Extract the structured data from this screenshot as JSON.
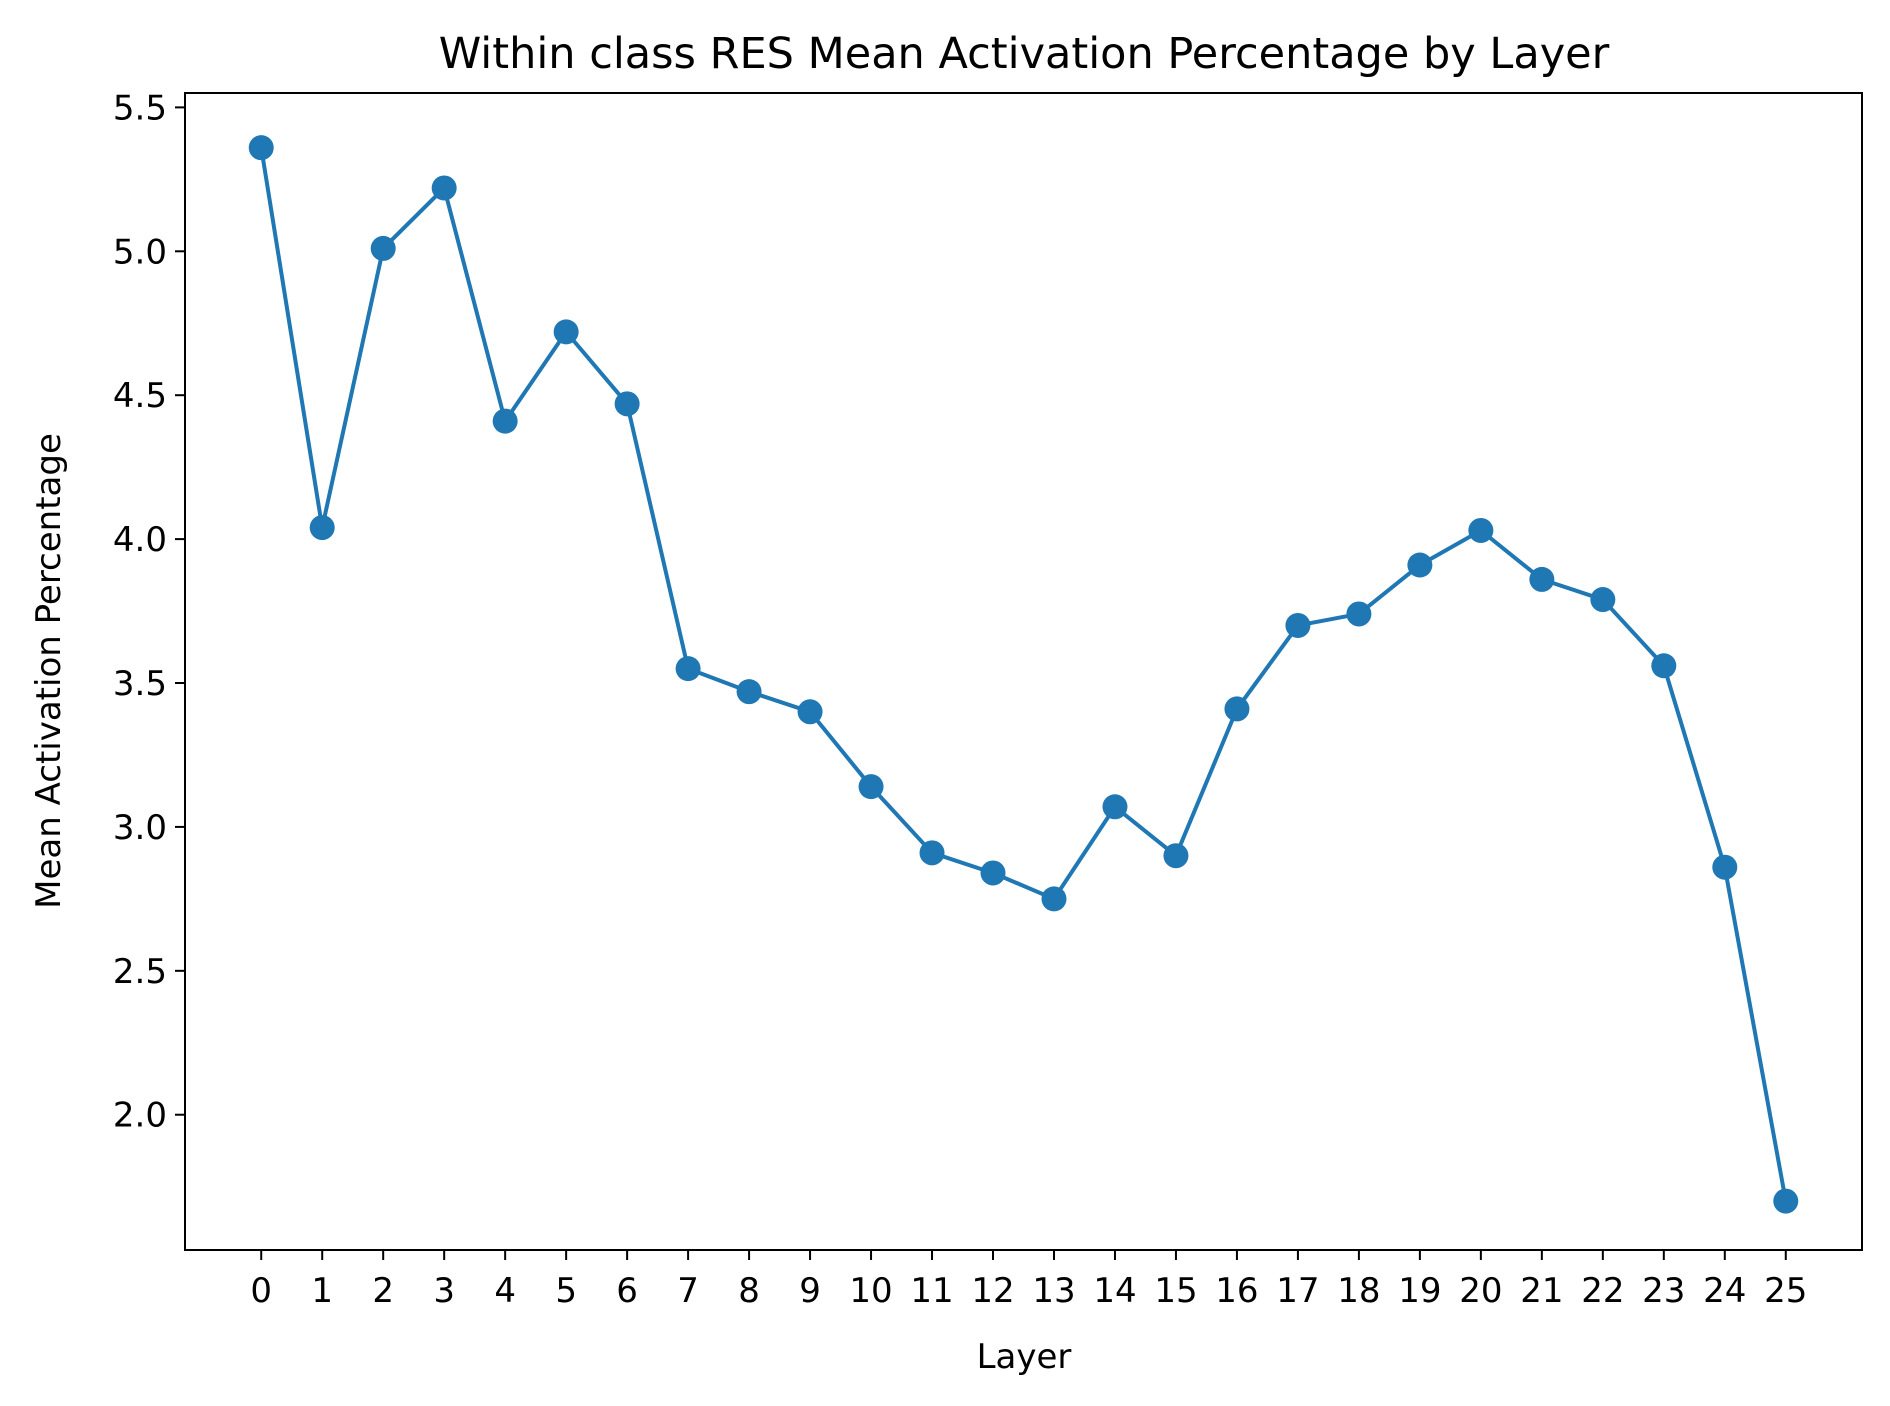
{
  "chart_data": {
    "type": "line",
    "title": "Within class RES Mean Activation Percentage by Layer",
    "xlabel": "Layer",
    "ylabel": "Mean Activation Percentage",
    "x_ticks": [
      "0",
      "1",
      "2",
      "3",
      "4",
      "5",
      "6",
      "7",
      "8",
      "9",
      "10",
      "11",
      "12",
      "13",
      "14",
      "15",
      "16",
      "17",
      "18",
      "19",
      "20",
      "21",
      "22",
      "23",
      "24",
      "25"
    ],
    "y_ticks": [
      "2.0",
      "2.5",
      "3.0",
      "3.5",
      "4.0",
      "4.5",
      "5.0",
      "5.5"
    ],
    "xlim": [
      -1.25,
      26.25
    ],
    "ylim": [
      1.53,
      5.55
    ],
    "grid": false,
    "legend": "none",
    "series": [
      {
        "color": "#1f77b4",
        "marker": "circle",
        "x": [
          0,
          1,
          2,
          3,
          4,
          5,
          6,
          7,
          8,
          9,
          10,
          11,
          12,
          13,
          14,
          15,
          16,
          17,
          18,
          19,
          20,
          21,
          22,
          23,
          24,
          25
        ],
        "y": [
          5.36,
          4.04,
          5.01,
          5.22,
          4.41,
          4.72,
          4.47,
          3.55,
          3.47,
          3.4,
          3.14,
          2.91,
          2.84,
          2.75,
          3.07,
          2.9,
          3.41,
          3.7,
          3.74,
          3.91,
          4.03,
          3.86,
          3.79,
          3.56,
          2.86,
          1.7
        ]
      }
    ]
  }
}
